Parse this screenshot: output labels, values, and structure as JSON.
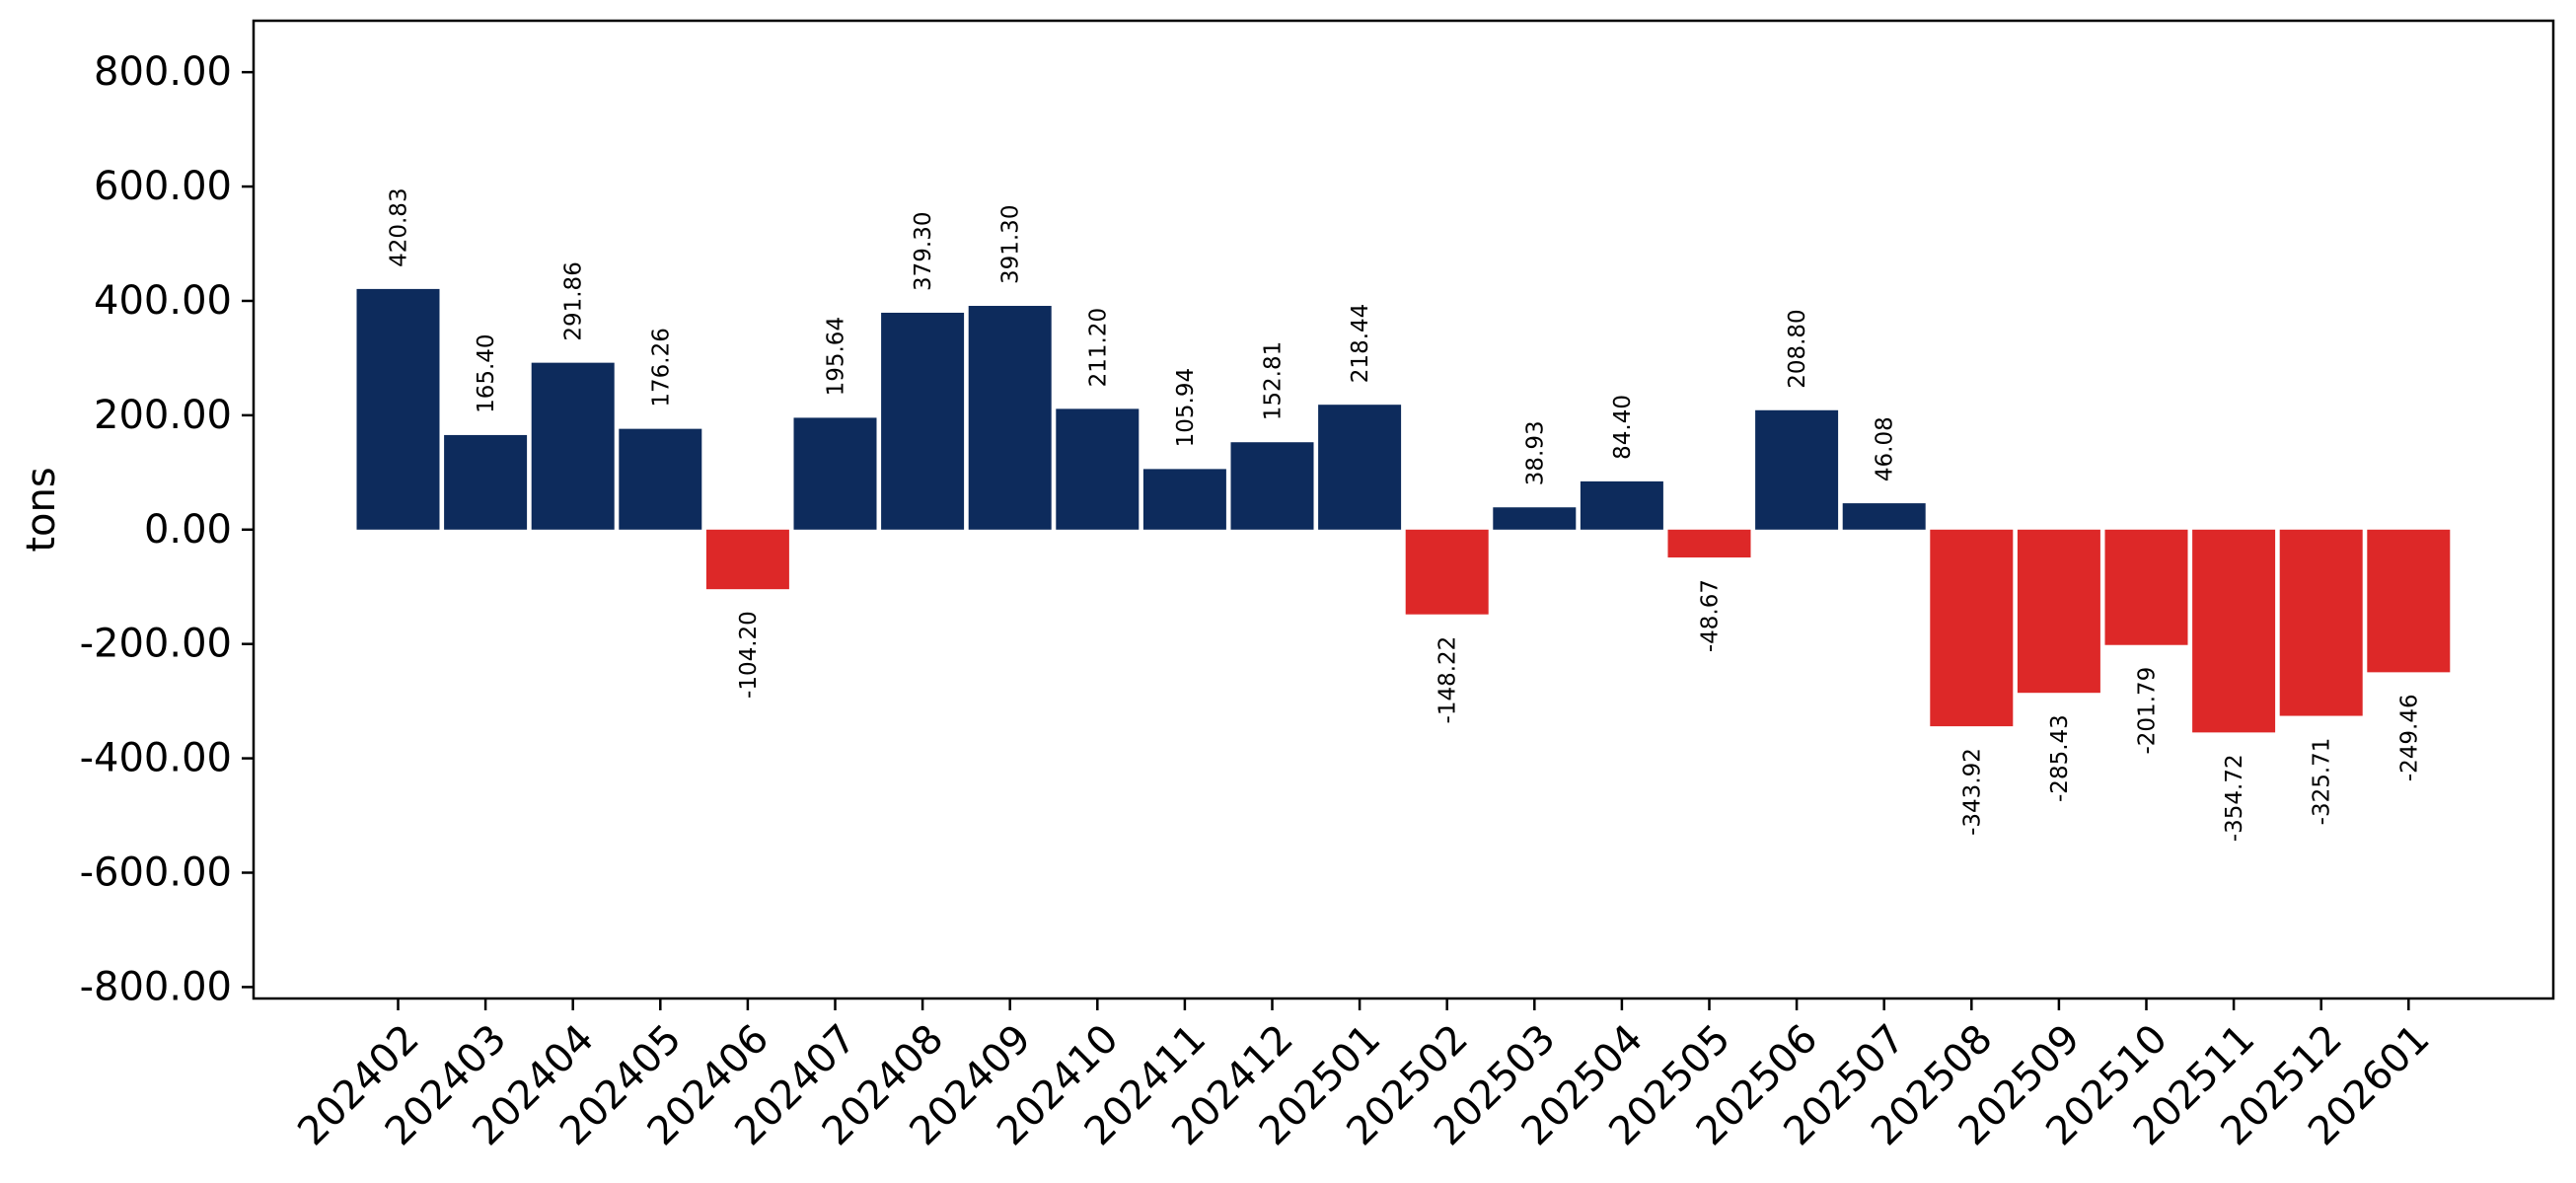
{
  "chart_data": {
    "type": "bar",
    "title": "",
    "xlabel": "",
    "ylabel": "tons",
    "ylim": [
      -820,
      890
    ],
    "yticks": [
      -800,
      -600,
      -400,
      -200,
      0,
      200,
      400,
      600,
      800
    ],
    "ytick_labels": [
      "-800.00",
      "-600.00",
      "-400.00",
      "-200.00",
      "0.00",
      "200.00",
      "400.00",
      "600.00",
      "800.00"
    ],
    "grid": false,
    "legend": "none",
    "colors": {
      "positive": "#0d2b5c",
      "negative": "#dd2828"
    },
    "categories": [
      "202402",
      "202403",
      "202404",
      "202405",
      "202406",
      "202407",
      "202408",
      "202409",
      "202410",
      "202411",
      "202412",
      "202501",
      "202502",
      "202503",
      "202504",
      "202505",
      "202506",
      "202507",
      "202508",
      "202509",
      "202510",
      "202511",
      "202512",
      "202601"
    ],
    "values": [
      420.83,
      165.4,
      291.86,
      176.26,
      -104.2,
      195.64,
      379.3,
      391.3,
      211.2,
      105.94,
      152.81,
      218.44,
      -148.22,
      38.93,
      84.4,
      -48.67,
      208.8,
      46.08,
      -343.92,
      -285.43,
      -201.79,
      -354.72,
      -325.71,
      -249.46
    ],
    "data_labels": [
      "420.83",
      "165.40",
      "291.86",
      "176.26",
      "-104.20",
      "195.64",
      "379.30",
      "391.30",
      "211.20",
      "105.94",
      "152.81",
      "218.44",
      "-148.22",
      "38.93",
      "84.40",
      "-48.67",
      "208.80",
      "46.08",
      "-343.92",
      "-285.43",
      "-201.79",
      "-354.72",
      "-325.71",
      "-249.46"
    ]
  }
}
